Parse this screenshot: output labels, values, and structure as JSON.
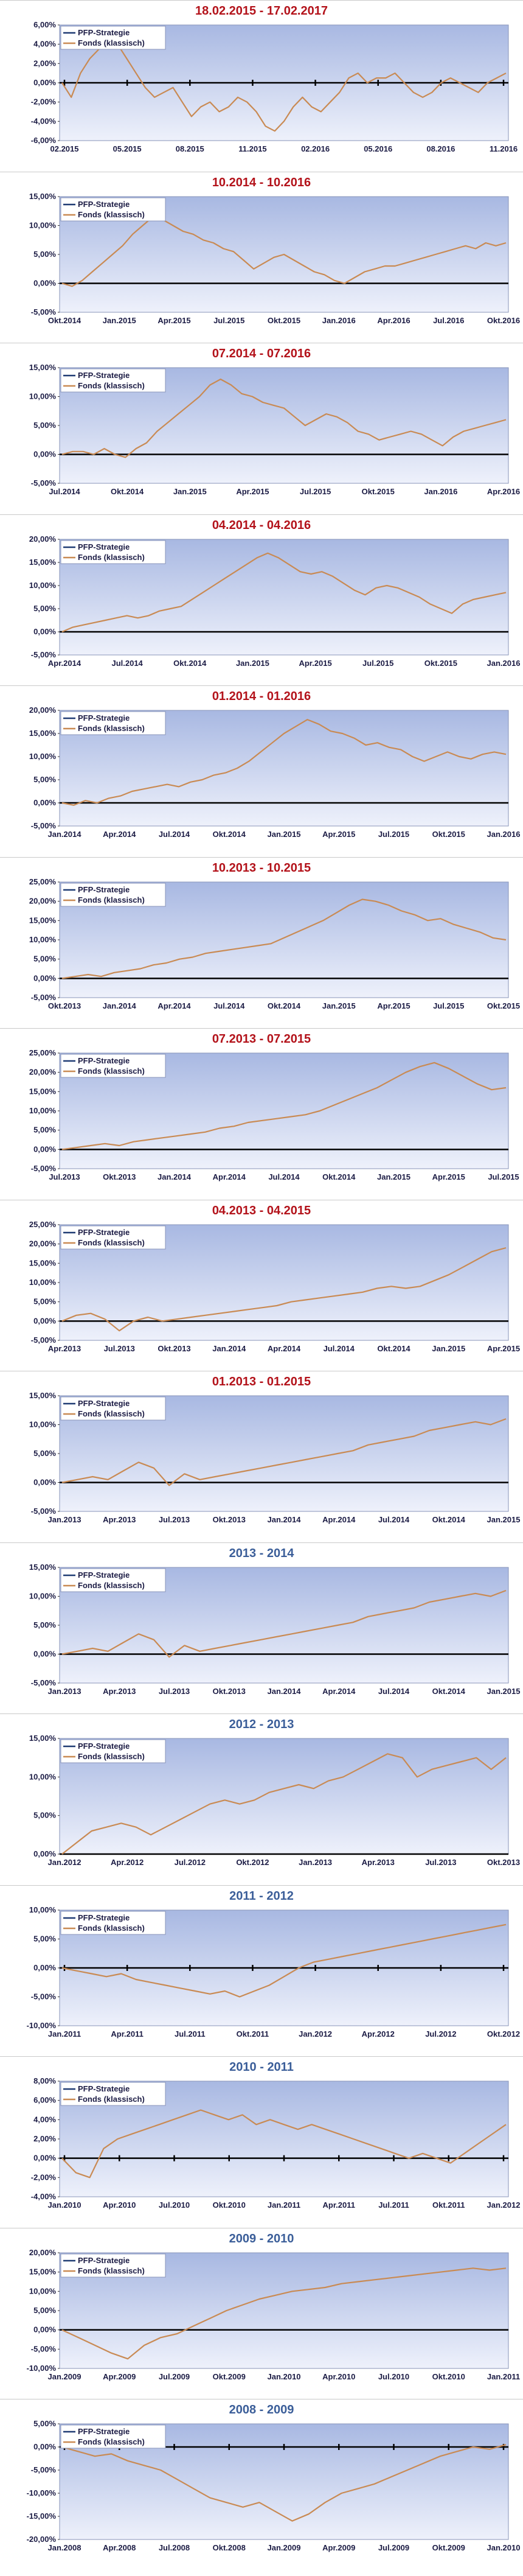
{
  "colors": {
    "title_red": "#b3121a",
    "title_blue": "#3b5e99",
    "plot_bg_top": "#a8b8e2",
    "plot_bg_bottom": "#eef1fb",
    "pfp_line": "#1f3b73",
    "fonds_line": "#c98a53",
    "zero_line": "#000000"
  },
  "legend": {
    "pfp": "PFP-Strategie",
    "fonds": "Fonds (klassisch)"
  },
  "chart_data": [
    {
      "type": "line",
      "title": "18.02.2015 - 17.02.2017",
      "title_color": "red",
      "y_ticks": [
        "6,00%",
        "4,00%",
        "2,00%",
        "0,00%",
        "-2,00%",
        "-4,00%",
        "-6,00%"
      ],
      "ylim": [
        -6,
        6
      ],
      "x_ticks": [
        "02.2015",
        "05.2015",
        "08.2015",
        "11.2015",
        "02.2016",
        "05.2016",
        "08.2016",
        "11.2016"
      ],
      "zero_markers": true,
      "series": [
        {
          "name": "Fonds (klassisch)",
          "values": [
            0,
            -1.5,
            1.0,
            2.5,
            3.5,
            4.5,
            4.0,
            2.5,
            1.0,
            -0.5,
            -1.5,
            -1.0,
            -0.5,
            -2.0,
            -3.5,
            -2.5,
            -2.0,
            -3.0,
            -2.5,
            -1.5,
            -2.0,
            -3.0,
            -4.5,
            -5.0,
            -4.0,
            -2.5,
            -1.5,
            -2.5,
            -3.0,
            -2.0,
            -1.0,
            0.5,
            1.0,
            0.0,
            0.5,
            0.5,
            1.0,
            0.0,
            -1.0,
            -1.5,
            -1.0,
            0.0,
            0.5,
            0.0,
            -0.5,
            -1.0,
            0.0,
            0.5,
            1.0
          ]
        }
      ]
    },
    {
      "type": "line",
      "title": "10.2014 - 10.2016",
      "title_color": "red",
      "y_ticks": [
        "15,00%",
        "10,00%",
        "5,00%",
        "0,00%",
        "-5,00%"
      ],
      "ylim": [
        -5,
        15
      ],
      "x_ticks": [
        "Okt.2014",
        "Jan.2015",
        "Apr.2015",
        "Jul.2015",
        "Okt.2015",
        "Jan.2016",
        "Apr.2016",
        "Jul.2016",
        "Okt.2016"
      ],
      "series": [
        {
          "name": "Fonds (klassisch)",
          "values": [
            0,
            -0.5,
            0.5,
            2.0,
            3.5,
            5.0,
            6.5,
            8.5,
            10.0,
            11.5,
            11.0,
            10.0,
            9.0,
            8.5,
            7.5,
            7.0,
            6.0,
            5.5,
            4.0,
            2.5,
            3.5,
            4.5,
            5.0,
            4.0,
            3.0,
            2.0,
            1.5,
            0.5,
            0.0,
            1.0,
            2.0,
            2.5,
            3.0,
            3.0,
            3.5,
            4.0,
            4.5,
            5.0,
            5.5,
            6.0,
            6.5,
            6.0,
            7.0,
            6.5,
            7.0
          ]
        }
      ]
    },
    {
      "type": "line",
      "title": "07.2014 - 07.2016",
      "title_color": "red",
      "y_ticks": [
        "15,00%",
        "10,00%",
        "5,00%",
        "0,00%",
        "-5,00%"
      ],
      "ylim": [
        -5,
        15
      ],
      "x_ticks": [
        "Jul.2014",
        "Okt.2014",
        "Jan.2015",
        "Apr.2015",
        "Jul.2015",
        "Okt.2015",
        "Jan.2016",
        "Apr.2016"
      ],
      "series": [
        {
          "name": "Fonds (klassisch)",
          "values": [
            0,
            0.5,
            0.5,
            0.0,
            1.0,
            0.0,
            -0.5,
            1.0,
            2.0,
            4.0,
            5.5,
            7.0,
            8.5,
            10.0,
            12.0,
            13.0,
            12.0,
            10.5,
            10.0,
            9.0,
            8.5,
            8.0,
            6.5,
            5.0,
            6.0,
            7.0,
            6.5,
            5.5,
            4.0,
            3.5,
            2.5,
            3.0,
            3.5,
            4.0,
            3.5,
            2.5,
            1.5,
            3.0,
            4.0,
            4.5,
            5.0,
            5.5,
            6.0
          ]
        }
      ]
    },
    {
      "type": "line",
      "title": "04.2014 - 04.2016",
      "title_color": "red",
      "y_ticks": [
        "20,00%",
        "15,00%",
        "10,00%",
        "5,00%",
        "0,00%",
        "-5,00%"
      ],
      "ylim": [
        -5,
        20
      ],
      "x_ticks": [
        "Apr.2014",
        "Jul.2014",
        "Okt.2014",
        "Jan.2015",
        "Apr.2015",
        "Jul.2015",
        "Okt.2015",
        "Jan.2016"
      ],
      "series": [
        {
          "name": "Fonds (klassisch)",
          "values": [
            0,
            1.0,
            1.5,
            2.0,
            2.5,
            3.0,
            3.5,
            3.0,
            3.5,
            4.5,
            5.0,
            5.5,
            7.0,
            8.5,
            10.0,
            11.5,
            13.0,
            14.5,
            16.0,
            17.0,
            16.0,
            14.5,
            13.0,
            12.5,
            13.0,
            12.0,
            10.5,
            9.0,
            8.0,
            9.5,
            10.0,
            9.5,
            8.5,
            7.5,
            6.0,
            5.0,
            4.0,
            6.0,
            7.0,
            7.5,
            8.0,
            8.5
          ]
        }
      ]
    },
    {
      "type": "line",
      "title": "01.2014 - 01.2016",
      "title_color": "red",
      "y_ticks": [
        "20,00%",
        "15,00%",
        "10,00%",
        "5,00%",
        "0,00%",
        "-5,00%"
      ],
      "ylim": [
        -5,
        20
      ],
      "x_ticks": [
        "Jan.2014",
        "Apr.2014",
        "Jul.2014",
        "Okt.2014",
        "Jan.2015",
        "Apr.2015",
        "Jul.2015",
        "Okt.2015",
        "Jan.2016"
      ],
      "series": [
        {
          "name": "Fonds (klassisch)",
          "values": [
            0,
            -0.5,
            0.5,
            0.0,
            1.0,
            1.5,
            2.5,
            3.0,
            3.5,
            4.0,
            3.5,
            4.5,
            5.0,
            6.0,
            6.5,
            7.5,
            9.0,
            11.0,
            13.0,
            15.0,
            16.5,
            18.0,
            17.0,
            15.5,
            15.0,
            14.0,
            12.5,
            13.0,
            12.0,
            11.5,
            10.0,
            9.0,
            10.0,
            11.0,
            10.0,
            9.5,
            10.5,
            11.0,
            10.5
          ]
        }
      ]
    },
    {
      "type": "line",
      "title": "10.2013 - 10.2015",
      "title_color": "red",
      "y_ticks": [
        "25,00%",
        "20,00%",
        "15,00%",
        "10,00%",
        "5,00%",
        "0,00%",
        "-5,00%"
      ],
      "ylim": [
        -5,
        25
      ],
      "x_ticks": [
        "Okt.2013",
        "Jan.2014",
        "Apr.2014",
        "Jul.2014",
        "Okt.2014",
        "Jan.2015",
        "Apr.2015",
        "Jul.2015",
        "Okt.2015"
      ],
      "series": [
        {
          "name": "Fonds (klassisch)",
          "values": [
            0,
            0.5,
            1.0,
            0.5,
            1.5,
            2.0,
            2.5,
            3.5,
            4.0,
            5.0,
            5.5,
            6.5,
            7.0,
            7.5,
            8.0,
            8.5,
            9.0,
            10.5,
            12.0,
            13.5,
            15.0,
            17.0,
            19.0,
            20.5,
            20.0,
            19.0,
            17.5,
            16.5,
            15.0,
            15.5,
            14.0,
            13.0,
            12.0,
            10.5,
            10.0
          ]
        }
      ]
    },
    {
      "type": "line",
      "title": "07.2013 - 07.2015",
      "title_color": "red",
      "y_ticks": [
        "25,00%",
        "20,00%",
        "15,00%",
        "10,00%",
        "5,00%",
        "0,00%",
        "-5,00%"
      ],
      "ylim": [
        -5,
        25
      ],
      "x_ticks": [
        "Jul.2013",
        "Okt.2013",
        "Jan.2014",
        "Apr.2014",
        "Jul.2014",
        "Okt.2014",
        "Jan.2015",
        "Apr.2015",
        "Jul.2015"
      ],
      "series": [
        {
          "name": "Fonds (klassisch)",
          "values": [
            0,
            0.5,
            1.0,
            1.5,
            1.0,
            2.0,
            2.5,
            3.0,
            3.5,
            4.0,
            4.5,
            5.5,
            6.0,
            7.0,
            7.5,
            8.0,
            8.5,
            9.0,
            10.0,
            11.5,
            13.0,
            14.5,
            16.0,
            18.0,
            20.0,
            21.5,
            22.5,
            21.0,
            19.0,
            17.0,
            15.5,
            16.0
          ]
        }
      ]
    },
    {
      "type": "line",
      "title": "04.2013 - 04.2015",
      "title_color": "red",
      "y_ticks": [
        "25,00%",
        "20,00%",
        "15,00%",
        "10,00%",
        "5,00%",
        "0,00%",
        "-5,00%"
      ],
      "ylim": [
        -5,
        25
      ],
      "x_ticks": [
        "Apr.2013",
        "Jul.2013",
        "Okt.2013",
        "Jan.2014",
        "Apr.2014",
        "Jul.2014",
        "Okt.2014",
        "Jan.2015",
        "Apr.2015"
      ],
      "series": [
        {
          "name": "Fonds (klassisch)",
          "values": [
            0,
            1.5,
            2.0,
            0.5,
            -2.5,
            0.0,
            1.0,
            0.0,
            0.5,
            1.0,
            1.5,
            2.0,
            2.5,
            3.0,
            3.5,
            4.0,
            5.0,
            5.5,
            6.0,
            6.5,
            7.0,
            7.5,
            8.5,
            9.0,
            8.5,
            9.0,
            10.5,
            12.0,
            14.0,
            16.0,
            18.0,
            19.0
          ]
        }
      ]
    },
    {
      "type": "line",
      "title": "01.2013 - 01.2015",
      "title_color": "red",
      "y_ticks": [
        "15,00%",
        "10,00%",
        "5,00%",
        "0,00%",
        "-5,00%"
      ],
      "ylim": [
        -5,
        15
      ],
      "x_ticks": [
        "Jan.2013",
        "Apr.2013",
        "Jul.2013",
        "Okt.2013",
        "Jan.2014",
        "Apr.2014",
        "Jul.2014",
        "Okt.2014",
        "Jan.2015"
      ],
      "series": [
        {
          "name": "Fonds (klassisch)",
          "values": [
            0,
            0.5,
            1.0,
            0.5,
            2.0,
            3.5,
            2.5,
            -0.5,
            1.5,
            0.5,
            1.0,
            1.5,
            2.0,
            2.5,
            3.0,
            3.5,
            4.0,
            4.5,
            5.0,
            5.5,
            6.5,
            7.0,
            7.5,
            8.0,
            9.0,
            9.5,
            10.0,
            10.5,
            10.0,
            11.0
          ]
        }
      ]
    },
    {
      "type": "line",
      "title": "2013 - 2014",
      "title_color": "blue",
      "y_ticks": [
        "15,00%",
        "10,00%",
        "5,00%",
        "0,00%",
        "-5,00%"
      ],
      "ylim": [
        -5,
        15
      ],
      "x_ticks": [
        "Jan.2013",
        "Apr.2013",
        "Jul.2013",
        "Okt.2013",
        "Jan.2014",
        "Apr.2014",
        "Jul.2014",
        "Okt.2014",
        "Jan.2015"
      ],
      "series": [
        {
          "name": "Fonds (klassisch)",
          "values": [
            0,
            0.5,
            1.0,
            0.5,
            2.0,
            3.5,
            2.5,
            -0.5,
            1.5,
            0.5,
            1.0,
            1.5,
            2.0,
            2.5,
            3.0,
            3.5,
            4.0,
            4.5,
            5.0,
            5.5,
            6.5,
            7.0,
            7.5,
            8.0,
            9.0,
            9.5,
            10.0,
            10.5,
            10.0,
            11.0
          ]
        }
      ]
    },
    {
      "type": "line",
      "title": "2012 - 2013",
      "title_color": "blue",
      "y_ticks": [
        "15,00%",
        "10,00%",
        "5,00%",
        "0,00%"
      ],
      "ylim": [
        0,
        15
      ],
      "x_ticks": [
        "Jan.2012",
        "Apr.2012",
        "Jul.2012",
        "Okt.2012",
        "Jan.2013",
        "Apr.2013",
        "Jul.2013",
        "Okt.2013"
      ],
      "series": [
        {
          "name": "Fonds (klassisch)",
          "values": [
            0,
            1.5,
            3.0,
            3.5,
            4.0,
            3.5,
            2.5,
            3.5,
            4.5,
            5.5,
            6.5,
            7.0,
            6.5,
            7.0,
            8.0,
            8.5,
            9.0,
            8.5,
            9.5,
            10.0,
            11.0,
            12.0,
            13.0,
            12.5,
            10.0,
            11.0,
            11.5,
            12.0,
            12.5,
            11.0,
            12.5
          ]
        }
      ]
    },
    {
      "type": "line",
      "title": "2011 - 2012",
      "title_color": "blue",
      "y_ticks": [
        "10,00%",
        "5,00%",
        "0,00%",
        "-5,00%",
        "-10,00%"
      ],
      "ylim": [
        -10,
        10
      ],
      "x_ticks": [
        "Jan.2011",
        "Apr.2011",
        "Jul.2011",
        "Okt.2011",
        "Jan.2012",
        "Apr.2012",
        "Jul.2012",
        "Okt.2012"
      ],
      "zero_markers": true,
      "series": [
        {
          "name": "Fonds (klassisch)",
          "values": [
            0,
            -0.5,
            -1.0,
            -1.5,
            -1.0,
            -2.0,
            -2.5,
            -3.0,
            -3.5,
            -4.0,
            -4.5,
            -4.0,
            -5.0,
            -4.0,
            -3.0,
            -1.5,
            0.0,
            1.0,
            1.5,
            2.0,
            2.5,
            3.0,
            3.5,
            4.0,
            4.5,
            5.0,
            5.5,
            6.0,
            6.5,
            7.0,
            7.5
          ]
        }
      ]
    },
    {
      "type": "line",
      "title": "2010 - 2011",
      "title_color": "blue",
      "y_ticks": [
        "8,00%",
        "6,00%",
        "4,00%",
        "2,00%",
        "0,00%",
        "-2,00%",
        "-4,00%"
      ],
      "ylim": [
        -4,
        8
      ],
      "x_ticks": [
        "Jan.2010",
        "Apr.2010",
        "Jul.2010",
        "Okt.2010",
        "Jan.2011",
        "Apr.2011",
        "Jul.2011",
        "Okt.2011",
        "Jan.2012"
      ],
      "zero_markers": true,
      "series": [
        {
          "name": "Fonds (klassisch)",
          "values": [
            0,
            -1.5,
            -2.0,
            1.0,
            2.0,
            2.5,
            3.0,
            3.5,
            4.0,
            4.5,
            5.0,
            4.5,
            4.0,
            4.5,
            3.5,
            4.0,
            3.5,
            3.0,
            3.5,
            3.0,
            2.5,
            2.0,
            1.5,
            1.0,
            0.5,
            0.0,
            0.5,
            0.0,
            -0.5,
            0.5,
            1.5,
            2.5,
            3.5
          ]
        }
      ]
    },
    {
      "type": "line",
      "title": "2009 - 2010",
      "title_color": "blue",
      "y_ticks": [
        "20,00%",
        "15,00%",
        "10,00%",
        "5,00%",
        "0,00%",
        "-5,00%",
        "-10,00%"
      ],
      "ylim": [
        -10,
        20
      ],
      "x_ticks": [
        "Jan.2009",
        "Apr.2009",
        "Jul.2009",
        "Okt.2009",
        "Jan.2010",
        "Apr.2010",
        "Jul.2010",
        "Okt.2010",
        "Jan.2011"
      ],
      "series": [
        {
          "name": "Fonds (klassisch)",
          "values": [
            0,
            -2.0,
            -4.0,
            -6.0,
            -7.5,
            -4.0,
            -2.0,
            -1.0,
            1.0,
            3.0,
            5.0,
            6.5,
            8.0,
            9.0,
            10.0,
            10.5,
            11.0,
            12.0,
            12.5,
            13.0,
            13.5,
            14.0,
            14.5,
            15.0,
            15.5,
            16.0,
            15.5,
            16.0
          ]
        }
      ]
    },
    {
      "type": "line",
      "title": "2008 - 2009",
      "title_color": "blue",
      "y_ticks": [
        "5,00%",
        "0,00%",
        "-5,00%",
        "-10,00%",
        "-15,00%",
        "-20,00%"
      ],
      "ylim": [
        -20,
        5
      ],
      "x_ticks": [
        "Jan.2008",
        "Apr.2008",
        "Jul.2008",
        "Okt.2008",
        "Jan.2009",
        "Apr.2009",
        "Jul.2009",
        "Okt.2009",
        "Jan.2010"
      ],
      "zero_markers": true,
      "series": [
        {
          "name": "Fonds (klassisch)",
          "values": [
            0,
            -1.0,
            -2.0,
            -1.5,
            -3.0,
            -4.0,
            -5.0,
            -7.0,
            -9.0,
            -11.0,
            -12.0,
            -13.0,
            -12.0,
            -14.0,
            -16.0,
            -14.5,
            -12.0,
            -10.0,
            -9.0,
            -8.0,
            -6.5,
            -5.0,
            -3.5,
            -2.0,
            -1.0,
            0.0,
            -0.5,
            0.5
          ]
        }
      ]
    }
  ]
}
